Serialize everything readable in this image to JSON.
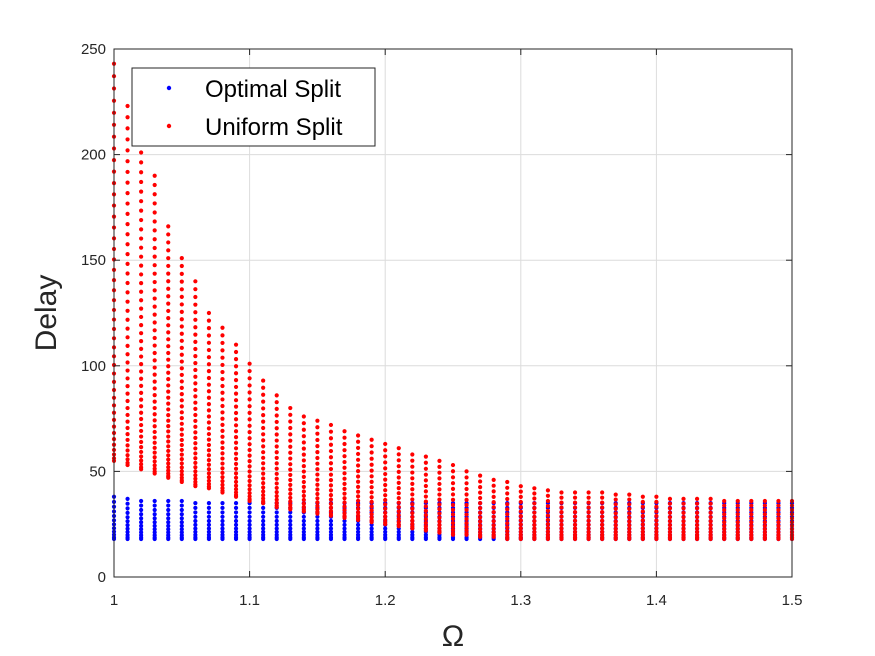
{
  "chart_data": {
    "type": "scatter",
    "title": "",
    "xlabel": "Ω",
    "ylabel": "Delay",
    "xlim": [
      1,
      1.5
    ],
    "ylim": [
      0,
      250
    ],
    "xticks": [
      1,
      1.1,
      1.2,
      1.3,
      1.4,
      1.5
    ],
    "xtick_labels": [
      "1",
      "1.1",
      "1.2",
      "1.3",
      "1.4",
      "1.5"
    ],
    "yticks": [
      0,
      50,
      100,
      150,
      200,
      250
    ],
    "ytick_labels": [
      "0",
      "50",
      "100",
      "150",
      "200",
      "250"
    ],
    "grid": true,
    "legend_position": "top-left",
    "x": [
      1.0,
      1.01,
      1.02,
      1.03,
      1.04,
      1.05,
      1.06,
      1.07,
      1.08,
      1.09,
      1.1,
      1.11,
      1.12,
      1.13,
      1.14,
      1.15,
      1.16,
      1.17,
      1.18,
      1.19,
      1.2,
      1.21,
      1.22,
      1.23,
      1.24,
      1.25,
      1.26,
      1.27,
      1.28,
      1.29,
      1.3,
      1.31,
      1.32,
      1.33,
      1.34,
      1.35,
      1.36,
      1.37,
      1.38,
      1.39,
      1.4,
      1.41,
      1.42,
      1.43,
      1.44,
      1.45,
      1.46,
      1.47,
      1.48,
      1.49,
      1.5
    ],
    "series": [
      {
        "name": "Optimal Split",
        "color": "#0000ff",
        "marker": "dot",
        "min": [
          18,
          18,
          18,
          18,
          18,
          18,
          18,
          18,
          18,
          18,
          18,
          18,
          18,
          18,
          18,
          18,
          18,
          18,
          18,
          18,
          18,
          18,
          18,
          18,
          18,
          18,
          18,
          18,
          18,
          18,
          18,
          18,
          18,
          18,
          18,
          18,
          18,
          18,
          18,
          18,
          18,
          18,
          18,
          18,
          18,
          18,
          18,
          18,
          18,
          18,
          18
        ],
        "max": [
          38,
          37,
          36,
          36,
          36,
          36,
          35,
          35,
          35,
          35,
          35,
          35,
          35,
          35,
          35,
          35,
          35,
          35,
          35,
          35,
          35,
          35,
          35,
          35,
          35,
          35,
          35,
          35,
          35,
          35,
          35,
          35,
          35,
          35,
          35,
          35,
          35,
          35,
          35,
          35,
          35,
          35,
          35,
          35,
          35,
          35,
          35,
          35,
          35,
          35,
          35
        ]
      },
      {
        "name": "Uniform Split",
        "color": "#ff0000",
        "marker": "dot",
        "min": [
          55,
          53,
          51,
          49,
          47,
          45,
          43,
          42,
          40,
          38,
          36,
          35,
          33,
          32,
          31,
          30,
          29,
          28,
          27,
          26,
          25,
          24,
          23,
          22,
          21,
          20,
          20,
          19,
          19,
          18,
          18,
          18,
          18,
          18,
          18,
          18,
          18,
          18,
          18,
          18,
          18,
          18,
          18,
          18,
          18,
          18,
          18,
          18,
          18,
          18,
          18
        ],
        "max": [
          243,
          223,
          201,
          190,
          166,
          151,
          140,
          125,
          118,
          110,
          101,
          93,
          86,
          80,
          76,
          74,
          72,
          69,
          67,
          65,
          63,
          61,
          58,
          57,
          55,
          53,
          50,
          48,
          46,
          45,
          43,
          42,
          41,
          40,
          40,
          40,
          40,
          39,
          39,
          38,
          38,
          37,
          37,
          37,
          37,
          36,
          36,
          36,
          36,
          36,
          36
        ]
      }
    ]
  }
}
